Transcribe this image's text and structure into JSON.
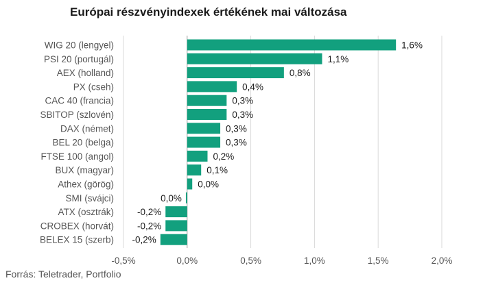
{
  "chart_data": {
    "type": "bar",
    "orientation": "horizontal",
    "title": "Európai részvényindexek értékének mai változása",
    "source": "Forrás: Teletrader, Portfolio",
    "categories": [
      "WIG 20 (lengyel)",
      "PSI 20 (portugál)",
      "AEX (holland)",
      "PX (cseh)",
      "CAC 40 (francia)",
      "SBITOP (szlovén)",
      "DAX (német)",
      "BEL 20 (belga)",
      "FTSE 100 (angol)",
      "BUX (magyar)",
      "Athex (görög)",
      "SMI (svájci)",
      "ATX (osztrák)",
      "CROBEX (horvát)",
      "BELEX 15 (szerb)"
    ],
    "values": [
      1.64,
      1.06,
      0.76,
      0.39,
      0.31,
      0.31,
      0.26,
      0.26,
      0.16,
      0.11,
      0.04,
      -0.01,
      -0.17,
      -0.17,
      -0.21
    ],
    "value_labels": [
      "1,6%",
      "1,1%",
      "0,8%",
      "0,4%",
      "0,3%",
      "0,3%",
      "0,3%",
      "0,3%",
      "0,2%",
      "0,1%",
      "0,0%",
      "0,0%",
      "-0,2%",
      "-0,2%",
      "-0,2%"
    ],
    "xlim": [
      -0.5,
      2.0
    ],
    "xticks": [
      -0.5,
      0.0,
      0.5,
      1.0,
      1.5,
      2.0
    ],
    "xtick_labels": [
      "-0,5%",
      "0,0%",
      "0,5%",
      "1,0%",
      "1,5%",
      "2,0%"
    ],
    "grid": "vertical",
    "bar_color": "#12a07e",
    "grid_color": "#d9d9d9",
    "zero_line_color": "#9e9e9e"
  }
}
